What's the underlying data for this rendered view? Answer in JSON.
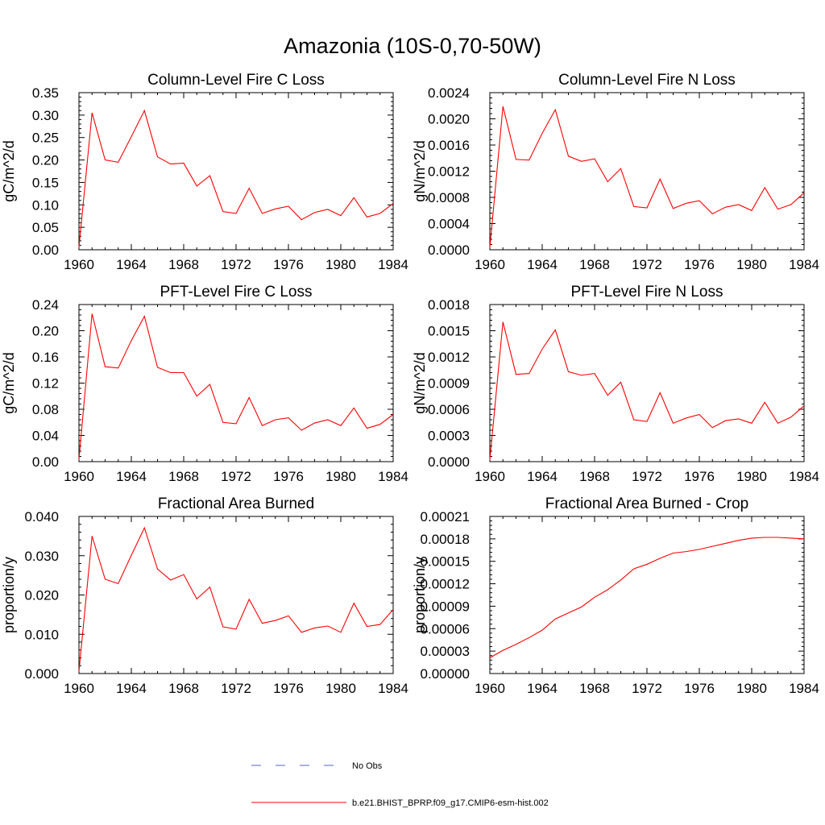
{
  "figure": {
    "title": "Amazonia (10S-0,70-50W)"
  },
  "colors": {
    "model_line": "#ff0000",
    "obs_line": "#5060d0",
    "axes": "#000000"
  },
  "legend": {
    "placement": "bottom-center",
    "entries": [
      {
        "label": "No Obs",
        "style": "dashed",
        "color": "#5060d0"
      },
      {
        "label": "b.e21.BHIST_BPRP.f09_g17.CMIP6-esm-hist.002",
        "style": "solid",
        "color": "#ff0000"
      }
    ]
  },
  "chart_data": [
    {
      "type": "line",
      "title": "Column-Level Fire C Loss",
      "ylabel": "gC/m^2/d",
      "xlabel": "",
      "xlim": [
        1960,
        1984
      ],
      "ylim": [
        0,
        0.35
      ],
      "xticks": [
        "1960",
        "1964",
        "1968",
        "1972",
        "1976",
        "1980",
        "1984"
      ],
      "yticks": [
        "0.00",
        "0.05",
        "0.10",
        "0.15",
        "0.20",
        "0.25",
        "0.30",
        "0.35"
      ],
      "x": [
        1960,
        1961,
        1962,
        1963,
        1964,
        1965,
        1966,
        1967,
        1968,
        1969,
        1970,
        1971,
        1972,
        1973,
        1974,
        1975,
        1976,
        1977,
        1978,
        1979,
        1980,
        1981,
        1982,
        1983,
        1984
      ],
      "series": [
        {
          "color": "#ff0000",
          "values": [
            0.005,
            0.305,
            0.2,
            0.195,
            0.252,
            0.31,
            0.207,
            0.191,
            0.193,
            0.142,
            0.165,
            0.085,
            0.081,
            0.137,
            0.081,
            0.091,
            0.097,
            0.067,
            0.083,
            0.09,
            0.076,
            0.116,
            0.073,
            0.081,
            0.103
          ]
        }
      ]
    },
    {
      "type": "line",
      "title": "Column-Level Fire N Loss",
      "ylabel": "gN/m^2/d",
      "xlabel": "",
      "xlim": [
        1960,
        1984
      ],
      "ylim": [
        0,
        0.0024
      ],
      "xticks": [
        "1960",
        "1964",
        "1968",
        "1972",
        "1976",
        "1980",
        "1984"
      ],
      "yticks": [
        "0.0000",
        "0.0004",
        "0.0008",
        "0.0012",
        "0.0016",
        "0.0020",
        "0.0024"
      ],
      "x": [
        1960,
        1961,
        1962,
        1963,
        1964,
        1965,
        1966,
        1967,
        1968,
        1969,
        1970,
        1971,
        1972,
        1973,
        1974,
        1975,
        1976,
        1977,
        1978,
        1979,
        1980,
        1981,
        1982,
        1983,
        1984
      ],
      "series": [
        {
          "color": "#ff0000",
          "values": [
            3e-05,
            0.00219,
            0.00138,
            0.00137,
            0.00178,
            0.00214,
            0.00143,
            0.00135,
            0.00139,
            0.00104,
            0.00124,
            0.00066,
            0.00064,
            0.00108,
            0.00063,
            0.00071,
            0.00075,
            0.00055,
            0.00065,
            0.00069,
            0.0006,
            0.00095,
            0.00062,
            0.00069,
            0.00087
          ]
        }
      ]
    },
    {
      "type": "line",
      "title": "PFT-Level Fire C Loss",
      "ylabel": "gC/m^2/d",
      "xlabel": "",
      "xlim": [
        1960,
        1984
      ],
      "ylim": [
        0,
        0.24
      ],
      "xticks": [
        "1960",
        "1964",
        "1968",
        "1972",
        "1976",
        "1980",
        "1984"
      ],
      "yticks": [
        "0.00",
        "0.04",
        "0.08",
        "0.12",
        "0.16",
        "0.20",
        "0.24"
      ],
      "x": [
        1960,
        1961,
        1962,
        1963,
        1964,
        1965,
        1966,
        1967,
        1968,
        1969,
        1970,
        1971,
        1972,
        1973,
        1974,
        1975,
        1976,
        1977,
        1978,
        1979,
        1980,
        1981,
        1982,
        1983,
        1984
      ],
      "series": [
        {
          "color": "#ff0000",
          "values": [
            0.003,
            0.226,
            0.145,
            0.143,
            0.185,
            0.222,
            0.144,
            0.136,
            0.136,
            0.1,
            0.118,
            0.06,
            0.058,
            0.098,
            0.055,
            0.064,
            0.067,
            0.048,
            0.059,
            0.064,
            0.055,
            0.082,
            0.051,
            0.057,
            0.072
          ]
        }
      ]
    },
    {
      "type": "line",
      "title": "PFT-Level Fire N Loss",
      "ylabel": "gN/m^2/d",
      "xlabel": "",
      "xlim": [
        1960,
        1984
      ],
      "ylim": [
        0,
        0.0018
      ],
      "xticks": [
        "1960",
        "1964",
        "1968",
        "1972",
        "1976",
        "1980",
        "1984"
      ],
      "yticks": [
        "0.0000",
        "0.0003",
        "0.0006",
        "0.0009",
        "0.0012",
        "0.0015",
        "0.0018"
      ],
      "x": [
        1960,
        1961,
        1962,
        1963,
        1964,
        1965,
        1966,
        1967,
        1968,
        1969,
        1970,
        1971,
        1972,
        1973,
        1974,
        1975,
        1976,
        1977,
        1978,
        1979,
        1980,
        1981,
        1982,
        1983,
        1984
      ],
      "series": [
        {
          "color": "#ff0000",
          "values": [
            2e-05,
            0.0016,
            0.001,
            0.00101,
            0.00129,
            0.00151,
            0.00103,
            0.00099,
            0.00101,
            0.00076,
            0.00091,
            0.00048,
            0.00046,
            0.00079,
            0.00044,
            0.0005,
            0.00054,
            0.00039,
            0.00047,
            0.00049,
            0.00044,
            0.00068,
            0.00044,
            0.00051,
            0.00064
          ]
        }
      ]
    },
    {
      "type": "line",
      "title": "Fractional Area Burned",
      "ylabel": "proportion/y",
      "xlabel": "",
      "xlim": [
        1960,
        1984
      ],
      "ylim": [
        0,
        0.04
      ],
      "xticks": [
        "1960",
        "1964",
        "1968",
        "1972",
        "1976",
        "1980",
        "1984"
      ],
      "yticks": [
        "0.000",
        "0.010",
        "0.020",
        "0.030",
        "0.040"
      ],
      "x": [
        1960,
        1961,
        1962,
        1963,
        1964,
        1965,
        1966,
        1967,
        1968,
        1969,
        1970,
        1971,
        1972,
        1973,
        1974,
        1975,
        1976,
        1977,
        1978,
        1979,
        1980,
        1981,
        1982,
        1983,
        1984
      ],
      "series": [
        {
          "color": "#ff0000",
          "values": [
            0.0005,
            0.035,
            0.024,
            0.0229,
            0.0301,
            0.0371,
            0.0266,
            0.0238,
            0.0252,
            0.019,
            0.022,
            0.0119,
            0.0113,
            0.0189,
            0.0128,
            0.0135,
            0.0147,
            0.0105,
            0.0116,
            0.0121,
            0.0105,
            0.0179,
            0.012,
            0.0125,
            0.0163
          ]
        }
      ]
    },
    {
      "type": "line",
      "title": "Fractional Area Burned - Crop",
      "ylabel": "proportion/y",
      "xlabel": "",
      "xlim": [
        1960,
        1984
      ],
      "ylim": [
        0,
        0.00021
      ],
      "xticks": [
        "1960",
        "1964",
        "1968",
        "1972",
        "1976",
        "1980",
        "1984"
      ],
      "yticks": [
        "0.00000",
        "0.00003",
        "0.00006",
        "0.00009",
        "0.00012",
        "0.00015",
        "0.00018",
        "0.00021"
      ],
      "x": [
        1960,
        1961,
        1962,
        1963,
        1964,
        1965,
        1966,
        1967,
        1968,
        1969,
        1970,
        1971,
        1972,
        1973,
        1974,
        1975,
        1976,
        1977,
        1978,
        1979,
        1980,
        1981,
        1982,
        1983,
        1984
      ],
      "series": [
        {
          "color": "#ff0000",
          "values": [
            2.1e-05,
            3.1e-05,
            3.9e-05,
            4.8e-05,
            5.8e-05,
            7.3e-05,
            8.1e-05,
            8.9e-05,
            0.000102,
            0.000112,
            0.000125,
            0.00014,
            0.000146,
            0.000154,
            0.000161,
            0.000163,
            0.000166,
            0.00017,
            0.000174,
            0.000178,
            0.000181,
            0.000182,
            0.000182,
            0.000181,
            0.00018
          ]
        }
      ]
    }
  ]
}
